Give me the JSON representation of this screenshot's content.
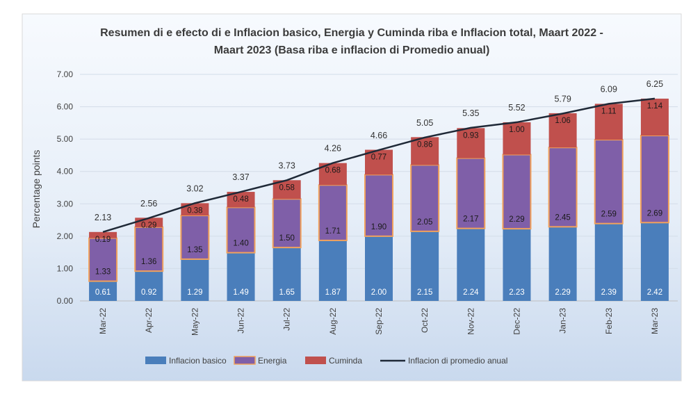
{
  "chart_data": {
    "type": "bar",
    "stacked": true,
    "title_lines": [
      "Resumen di e efecto di e Inflacion basico, Energia y Cuminda riba e Inflacion total, Maart 2022 -",
      "Maart 2023 (Basa riba e inflacion di Promedio anual)"
    ],
    "ylabel": "Percentage points",
    "xlabel": "",
    "ylim": [
      0,
      7
    ],
    "yticks": [
      "0.00",
      "1.00",
      "2.00",
      "3.00",
      "4.00",
      "5.00",
      "6.00",
      "7.00"
    ],
    "grid": true,
    "legend_position": "bottom",
    "categories": [
      "Mar-22",
      "Apr-22",
      "May-22",
      "Jun-22",
      "Jul-22",
      "Aug-22",
      "Sep-22",
      "Oct-22",
      "Nov-22",
      "Dec-22",
      "Jan-23",
      "Feb-23",
      "Mar-23"
    ],
    "series": [
      {
        "name": "Inflacion basico",
        "color": "#4a7ebb",
        "values": [
          0.61,
          0.92,
          1.29,
          1.49,
          1.65,
          1.87,
          2.0,
          2.15,
          2.24,
          2.23,
          2.29,
          2.39,
          2.42
        ],
        "labels": [
          "0.61",
          "0.92",
          "1.29",
          "1.49",
          "1.65",
          "1.87",
          "2.00",
          "2.15",
          "2.24",
          "2.23",
          "2.29",
          "2.39",
          "2.42"
        ]
      },
      {
        "name": "Energia",
        "color": "#7f5fa8",
        "border": "#f2a25c",
        "values": [
          1.33,
          1.36,
          1.35,
          1.4,
          1.5,
          1.71,
          1.9,
          2.05,
          2.17,
          2.29,
          2.45,
          2.59,
          2.69
        ],
        "labels": [
          "1.33",
          "1.36",
          "1.35",
          "1.40",
          "1.50",
          "1.71",
          "1.90",
          "2.05",
          "2.17",
          "2.29",
          "2.45",
          "2.59",
          "2.69"
        ]
      },
      {
        "name": "Cuminda",
        "color": "#c0504d",
        "values": [
          0.19,
          0.29,
          0.38,
          0.48,
          0.58,
          0.68,
          0.77,
          0.86,
          0.93,
          1.0,
          1.06,
          1.11,
          1.14
        ],
        "labels": [
          "0.19",
          "0.29",
          "0.38",
          "0.48",
          "0.58",
          "0.68",
          "0.77",
          "0.86",
          "0.93",
          "1.00",
          "1.06",
          "1.11",
          "1.14"
        ]
      }
    ],
    "line_series": {
      "name": "Inflacion di promedio anual",
      "color": "#1f2937",
      "values": [
        2.13,
        2.56,
        3.02,
        3.37,
        3.73,
        4.26,
        4.66,
        5.05,
        5.35,
        5.52,
        5.79,
        6.09,
        6.25
      ],
      "labels": [
        "2.13",
        "2.56",
        "3.02",
        "3.37",
        "3.73",
        "4.26",
        "4.66",
        "5.05",
        "5.35",
        "5.52",
        "5.79",
        "6.09",
        "6.25"
      ]
    }
  },
  "colors": {
    "bg_top": "#f7fafe",
    "bg_bottom": "#c9d9ee",
    "grid": "#d3dce8",
    "text": "#404040",
    "title": "#3b3b3b"
  }
}
